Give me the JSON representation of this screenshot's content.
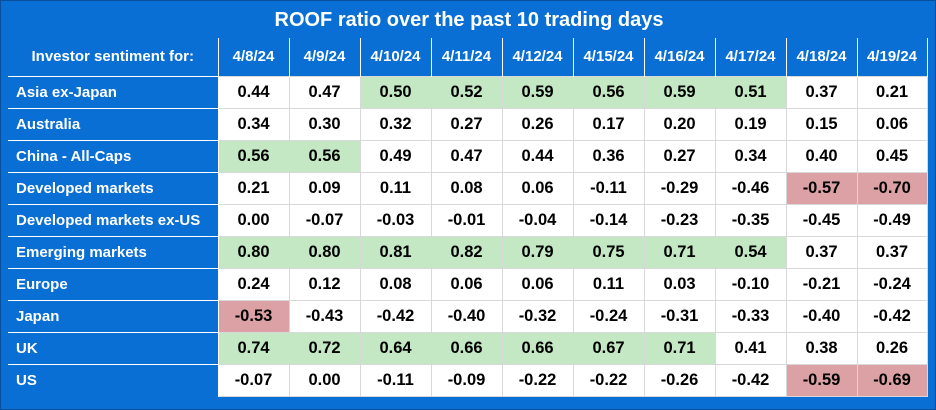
{
  "chart_data": {
    "type": "table",
    "title": "ROOF ratio over the past 10 trading days",
    "row_header_label": "Investor sentiment for:",
    "dates": [
      "4/8/24",
      "4/9/24",
      "4/10/24",
      "4/11/24",
      "4/12/24",
      "4/15/24",
      "4/16/24",
      "4/17/24",
      "4/18/24",
      "4/19/24"
    ],
    "rows": [
      {
        "name": "Asia ex-Japan",
        "values": [
          "0.44",
          "0.47",
          "0.50",
          "0.52",
          "0.59",
          "0.56",
          "0.59",
          "0.51",
          "0.37",
          "0.21"
        ]
      },
      {
        "name": "Australia",
        "values": [
          "0.34",
          "0.30",
          "0.32",
          "0.27",
          "0.26",
          "0.17",
          "0.20",
          "0.19",
          "0.15",
          "0.06"
        ]
      },
      {
        "name": "China - All-Caps",
        "values": [
          "0.56",
          "0.56",
          "0.49",
          "0.47",
          "0.44",
          "0.36",
          "0.27",
          "0.34",
          "0.40",
          "0.45"
        ]
      },
      {
        "name": "Developed markets",
        "values": [
          "0.21",
          "0.09",
          "0.11",
          "0.08",
          "0.06",
          "-0.11",
          "-0.29",
          "-0.46",
          "-0.57",
          "-0.70"
        ]
      },
      {
        "name": "Developed markets ex-US",
        "values": [
          "0.00",
          "-0.07",
          "-0.03",
          "-0.01",
          "-0.04",
          "-0.14",
          "-0.23",
          "-0.35",
          "-0.45",
          "-0.49"
        ]
      },
      {
        "name": "Emerging markets",
        "values": [
          "0.80",
          "0.80",
          "0.81",
          "0.82",
          "0.79",
          "0.75",
          "0.71",
          "0.54",
          "0.37",
          "0.37"
        ]
      },
      {
        "name": "Europe",
        "values": [
          "0.24",
          "0.12",
          "0.08",
          "0.06",
          "0.06",
          "0.11",
          "0.03",
          "-0.10",
          "-0.21",
          "-0.24"
        ]
      },
      {
        "name": "Japan",
        "values": [
          "-0.53",
          "-0.43",
          "-0.42",
          "-0.40",
          "-0.32",
          "-0.24",
          "-0.31",
          "-0.33",
          "-0.40",
          "-0.42"
        ]
      },
      {
        "name": "UK",
        "values": [
          "0.74",
          "0.72",
          "0.64",
          "0.66",
          "0.66",
          "0.67",
          "0.71",
          "0.41",
          "0.38",
          "0.26"
        ]
      },
      {
        "name": "US",
        "values": [
          "-0.07",
          "0.00",
          "-0.11",
          "-0.09",
          "-0.22",
          "-0.22",
          "-0.26",
          "-0.42",
          "-0.59",
          "-0.69"
        ]
      }
    ],
    "highlight": {
      "positive_above": 0.5,
      "negative_below": -0.5
    },
    "colors": {
      "background": "#0a6fd4",
      "positive": "#c3e8c3",
      "negative": "#dba1a5",
      "cell": "#ffffff"
    }
  }
}
